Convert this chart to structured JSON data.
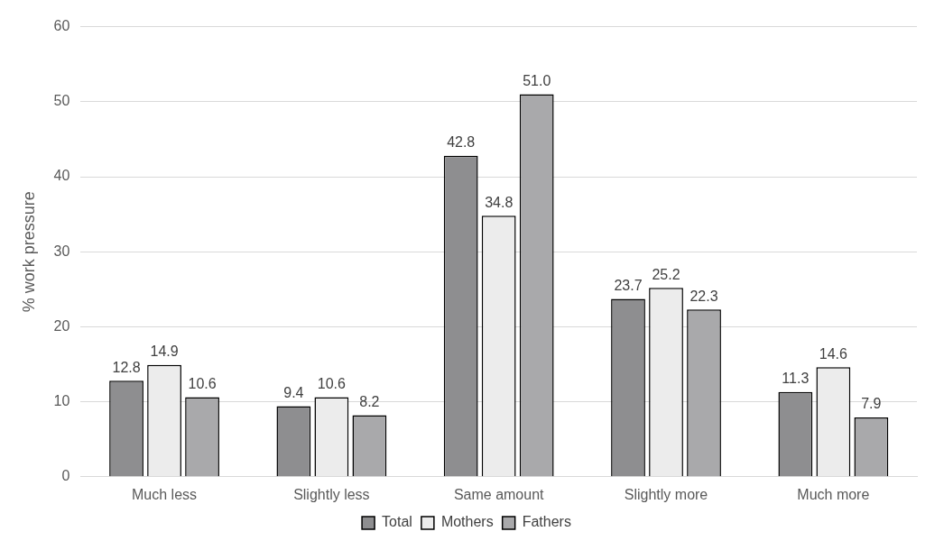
{
  "chart_data": {
    "type": "bar",
    "ylabel": "% work pressure",
    "categories": [
      "Much less",
      "Slightly less",
      "Same amount",
      "Slightly more",
      "Much more"
    ],
    "series": [
      {
        "name": "Total",
        "color": "#8e8e90",
        "values": [
          12.8,
          9.4,
          42.8,
          23.7,
          11.3
        ],
        "value_labels": [
          "12.8",
          "9.4",
          "42.8",
          "23.7",
          "11.3"
        ]
      },
      {
        "name": "Mothers",
        "color": "#ececec",
        "values": [
          14.9,
          10.6,
          34.8,
          25.2,
          14.6
        ],
        "value_labels": [
          "14.9",
          "10.6",
          "34.8",
          "25.2",
          "14.6"
        ]
      },
      {
        "name": "Fathers",
        "color": "#a9a9ab",
        "values": [
          10.6,
          8.2,
          51.0,
          22.3,
          7.9
        ],
        "value_labels": [
          "10.6",
          "8.2",
          "51.0",
          "22.3",
          "7.9"
        ]
      }
    ],
    "ylim": [
      0,
      60
    ],
    "yticks": [
      0,
      10,
      20,
      30,
      40,
      50,
      60
    ],
    "grid": "y",
    "legend": "bottom"
  }
}
